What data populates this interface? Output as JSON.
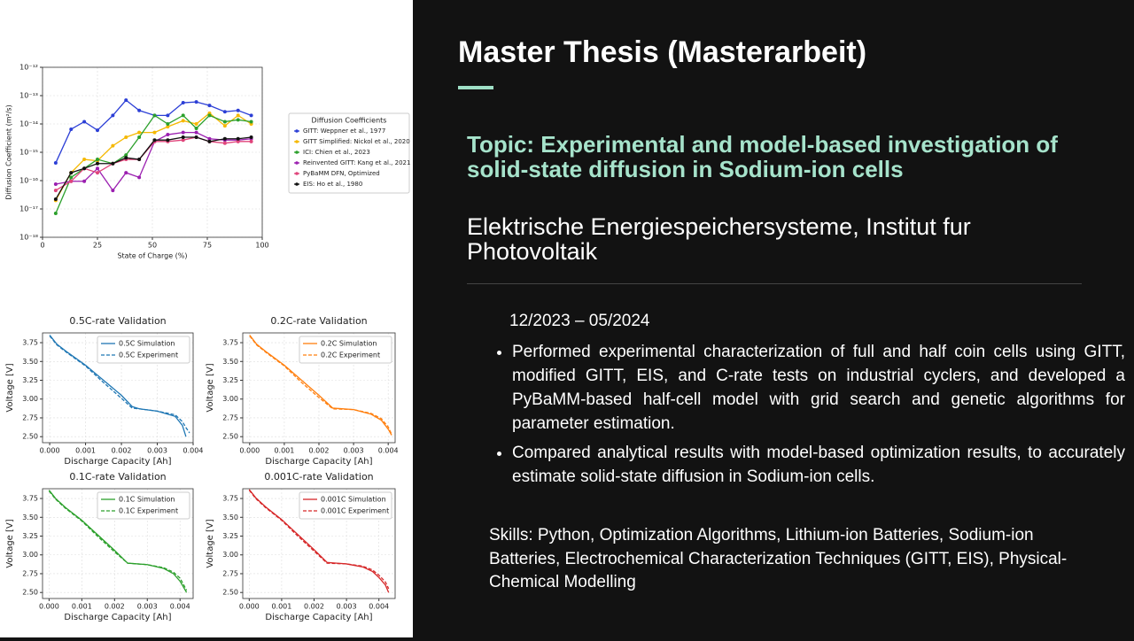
{
  "slide": {
    "title": "Master Thesis (Masterarbeit)",
    "topic": "Topic: Experimental and model-based investigation of solid-state diffusion in Sodium-ion cells",
    "institute": "Elektrische Energiespeichersysteme, Institut fur Photovoltaik",
    "period": "12/2023 – 05/2024",
    "bullets": [
      "Performed experimental characterization of full and half coin cells using GITT, modified GITT, EIS, and C-rate tests on industrial cyclers, and developed a PyBaMM-based half-cell model with grid search and genetic algorithms for parameter estimation.",
      "Compared analytical results with model-based optimization results, to accurately estimate solid-state diffusion in Sodium-ion cells."
    ],
    "skills": "Skills: Python, Optimization Algorithms, Lithium-ion Batteries, Sodium-ion Batteries, Electrochemical Characterization Techniques (GITT, EIS), Physical-Chemical Modelling"
  },
  "chart_data": [
    {
      "type": "line",
      "x_label": "State of Charge (%)",
      "y_label": "Diffusion Coefficient (m²/s)",
      "log_y": true,
      "grid": true,
      "legend": "outside right",
      "legend_title": "Diffusion Coefficients",
      "xlim": [
        0,
        100
      ],
      "xticks": [
        0,
        25,
        50,
        75,
        100
      ],
      "ylim": [
        1e-18,
        1e-12
      ],
      "yticks": [
        {
          "value": 1e-18,
          "label": "10⁻¹⁸"
        },
        {
          "value": 1e-17,
          "label": "10⁻¹⁷"
        },
        {
          "value": 1e-16,
          "label": "10⁻¹⁶"
        },
        {
          "value": 1e-15,
          "label": "10⁻¹⁵"
        },
        {
          "value": 1e-14,
          "label": "10⁻¹⁴"
        },
        {
          "value": 1e-13,
          "label": "10⁻¹³"
        },
        {
          "value": 1e-12,
          "label": "10⁻¹²"
        }
      ],
      "x": [
        6,
        13,
        19,
        25,
        32,
        38,
        44,
        51,
        57,
        64,
        70,
        76,
        83,
        89,
        95
      ],
      "series": [
        {
          "name": "GITT: Weppner et al., 1977",
          "color": "#2c3fd6",
          "marker": "o",
          "linestyle": "solid",
          "values": [
            4.2e-16,
            6.5e-15,
            1.2e-14,
            6e-15,
            2e-14,
            6.9e-14,
            3e-14,
            2e-14,
            2e-14,
            5.6e-14,
            6e-14,
            4.5e-14,
            2.7e-14,
            3e-14,
            2e-14
          ]
        },
        {
          "name": "GITT Simplified: Nickol et al., 2020",
          "color": "#f5b800",
          "marker": "o",
          "linestyle": "solid",
          "values": [
            2e-17,
            1.9e-16,
            5.6e-16,
            5e-16,
            1.7e-15,
            3.4e-15,
            5e-15,
            5e-15,
            8e-15,
            1.3e-14,
            1e-14,
            2.4e-14,
            8.6e-15,
            2e-14,
            1e-14
          ]
        },
        {
          "name": "ICI: Chien et al., 2023",
          "color": "#2ca02c",
          "marker": "o",
          "linestyle": "solid",
          "values": [
            7e-18,
            1.3e-16,
            2.7e-16,
            5.6e-16,
            4e-16,
            8e-16,
            3.4e-15,
            2e-14,
            1e-14,
            2e-14,
            7e-15,
            2e-14,
            1.2e-14,
            1.4e-14,
            1.2e-14
          ]
        },
        {
          "name": "Reinvented GITT: Kang et al., 2021",
          "color": "#9b1fb0",
          "marker": "o",
          "linestyle": "solid",
          "values": [
            7.5e-17,
            9.5e-17,
            9.5e-17,
            2.7e-16,
            4.5e-17,
            1.9e-16,
            1.3e-16,
            2.4e-15,
            4.2e-15,
            5e-15,
            5e-15,
            3e-15,
            2.7e-15,
            2.7e-15,
            3e-15
          ]
        },
        {
          "name": "PyBaMM DFN, Optimized",
          "color": "#e0457b",
          "marker": "o",
          "linestyle": "solid",
          "values": [
            4.5e-17,
            9.5e-17,
            2.7e-16,
            1.9e-16,
            4e-16,
            5.6e-16,
            5.6e-16,
            2.4e-15,
            2.4e-15,
            2.7e-15,
            3.4e-15,
            2.4e-15,
            2.1e-15,
            2.4e-15,
            2.4e-15
          ]
        },
        {
          "name": "EIS: Ho et al., 1980",
          "color": "#111111",
          "marker": "o",
          "linestyle": "solid",
          "values": [
            2.2e-17,
            1.9e-16,
            2.7e-16,
            4e-16,
            4e-16,
            6.4e-16,
            5.6e-16,
            2.7e-15,
            2.7e-15,
            3.4e-15,
            3.4e-15,
            2.4e-15,
            3e-15,
            3e-15,
            3.4e-15
          ]
        }
      ]
    },
    {
      "type": "line",
      "title": "0.5C-rate Validation",
      "x_label": "Discharge Capacity [Ah]",
      "y_label": "Voltage [V]",
      "grid": true,
      "legend": "upper right",
      "xlim": [
        -0.0002,
        0.004
      ],
      "xticks": [
        {
          "value": 0,
          "label": "0.000"
        },
        {
          "value": 0.001,
          "label": "0.001"
        },
        {
          "value": 0.002,
          "label": "0.002"
        },
        {
          "value": 0.003,
          "label": "0.003"
        },
        {
          "value": 0.004,
          "label": "0.004"
        }
      ],
      "ylim": [
        2.42,
        3.88
      ],
      "yticks": [
        {
          "value": 2.5,
          "label": "2.50"
        },
        2.75,
        {
          "value": 3,
          "label": "3.00"
        },
        3.25,
        {
          "value": 3.5,
          "label": "3.50"
        },
        3.75
      ],
      "x": [
        0,
        0.0002,
        0.0005,
        0.001,
        0.0015,
        0.002,
        0.0023,
        0.0025,
        0.003,
        0.0035,
        0.0037,
        0.0038,
        0.0039
      ],
      "series": [
        {
          "name": "0.5C Simulation",
          "color": "#1f77b4",
          "linestyle": "solid",
          "values": [
            3.85,
            3.73,
            3.62,
            3.45,
            3.25,
            3.05,
            2.9,
            2.87,
            2.84,
            2.77,
            2.65,
            2.5,
            null
          ]
        },
        {
          "name": "0.5C Experiment",
          "color": "#1f77b4",
          "linestyle": "dashed",
          "values": [
            3.84,
            3.72,
            3.61,
            3.44,
            3.22,
            3.01,
            2.88,
            2.87,
            2.84,
            2.79,
            2.7,
            2.62,
            2.55
          ]
        }
      ]
    },
    {
      "type": "line",
      "title": "0.2C-rate Validation",
      "x_label": "Discharge Capacity [Ah]",
      "y_label": "Voltage [V]",
      "grid": true,
      "legend": "upper right",
      "xlim": [
        -0.0002,
        0.0042
      ],
      "xticks": [
        {
          "value": 0,
          "label": "0.000"
        },
        {
          "value": 0.001,
          "label": "0.001"
        },
        {
          "value": 0.002,
          "label": "0.002"
        },
        {
          "value": 0.003,
          "label": "0.003"
        },
        {
          "value": 0.004,
          "label": "0.004"
        }
      ],
      "ylim": [
        2.42,
        3.88
      ],
      "yticks": [
        {
          "value": 2.5,
          "label": "2.50"
        },
        2.75,
        {
          "value": 3,
          "label": "3.00"
        },
        3.25,
        {
          "value": 3.5,
          "label": "3.50"
        },
        3.75
      ],
      "x": [
        0,
        0.0002,
        0.0005,
        0.001,
        0.0015,
        0.002,
        0.0024,
        0.003,
        0.0035,
        0.0038,
        0.004,
        0.0041
      ],
      "series": [
        {
          "name": "0.2C Simulation",
          "color": "#ff7f0e",
          "linestyle": "solid",
          "values": [
            3.85,
            3.73,
            3.62,
            3.45,
            3.25,
            3.05,
            2.88,
            2.86,
            2.8,
            2.72,
            2.6,
            2.52
          ]
        },
        {
          "name": "0.2C Experiment",
          "color": "#ff7f0e",
          "linestyle": "dashed",
          "values": [
            3.84,
            3.72,
            3.61,
            3.44,
            3.22,
            3.02,
            2.87,
            2.86,
            2.81,
            2.74,
            2.63,
            2.53
          ]
        }
      ]
    },
    {
      "type": "line",
      "title": "0.1C-rate Validation",
      "x_label": "Discharge Capacity [Ah]",
      "y_label": "Voltage [V]",
      "grid": true,
      "legend": "upper right",
      "xlim": [
        -0.0002,
        0.0044
      ],
      "xticks": [
        {
          "value": 0,
          "label": "0.000"
        },
        {
          "value": 0.001,
          "label": "0.001"
        },
        {
          "value": 0.002,
          "label": "0.002"
        },
        {
          "value": 0.003,
          "label": "0.003"
        },
        {
          "value": 0.004,
          "label": "0.004"
        }
      ],
      "ylim": [
        2.42,
        3.88
      ],
      "yticks": [
        {
          "value": 2.5,
          "label": "2.50"
        },
        2.75,
        {
          "value": 3,
          "label": "3.00"
        },
        3.25,
        {
          "value": 3.5,
          "label": "3.50"
        },
        3.75
      ],
      "x": [
        0,
        0.0002,
        0.0005,
        0.001,
        0.0015,
        0.002,
        0.0024,
        0.003,
        0.0035,
        0.0038,
        0.004,
        0.0042
      ],
      "series": [
        {
          "name": "0.1C Simulation",
          "color": "#2ca02c",
          "linestyle": "solid",
          "values": [
            3.86,
            3.75,
            3.63,
            3.46,
            3.26,
            3.06,
            2.89,
            2.87,
            2.82,
            2.75,
            2.65,
            2.5
          ]
        },
        {
          "name": "0.1C Experiment",
          "color": "#2ca02c",
          "linestyle": "dashed",
          "values": [
            3.85,
            3.74,
            3.62,
            3.45,
            3.24,
            3.04,
            2.89,
            2.87,
            2.83,
            2.77,
            2.69,
            2.53
          ]
        }
      ]
    },
    {
      "type": "line",
      "title": "0.001C-rate Validation",
      "x_label": "Discharge Capacity [Ah]",
      "y_label": "Voltage [V]",
      "grid": true,
      "legend": "upper right",
      "xlim": [
        -0.0002,
        0.0045
      ],
      "xticks": [
        {
          "value": 0,
          "label": "0.000"
        },
        {
          "value": 0.001,
          "label": "0.001"
        },
        {
          "value": 0.002,
          "label": "0.002"
        },
        {
          "value": 0.003,
          "label": "0.003"
        },
        {
          "value": 0.004,
          "label": "0.004"
        }
      ],
      "ylim": [
        2.42,
        3.88
      ],
      "yticks": [
        {
          "value": 2.5,
          "label": "2.50"
        },
        2.75,
        {
          "value": 3,
          "label": "3.00"
        },
        3.25,
        {
          "value": 3.5,
          "label": "3.50"
        },
        3.75
      ],
      "x": [
        0,
        0.0002,
        0.0005,
        0.001,
        0.0015,
        0.002,
        0.0024,
        0.003,
        0.0035,
        0.0038,
        0.004,
        0.0042,
        0.0043
      ],
      "series": [
        {
          "name": "0.001C Simulation",
          "color": "#d62728",
          "linestyle": "solid",
          "values": [
            3.87,
            3.76,
            3.64,
            3.47,
            3.27,
            3.07,
            2.9,
            2.88,
            2.84,
            2.78,
            2.7,
            2.6,
            2.5
          ]
        },
        {
          "name": "0.001C Experiment",
          "color": "#d62728",
          "linestyle": "dashed",
          "values": [
            3.86,
            3.75,
            3.63,
            3.46,
            3.25,
            3.05,
            2.89,
            2.88,
            2.85,
            2.8,
            2.73,
            2.64,
            2.55
          ]
        }
      ]
    }
  ]
}
